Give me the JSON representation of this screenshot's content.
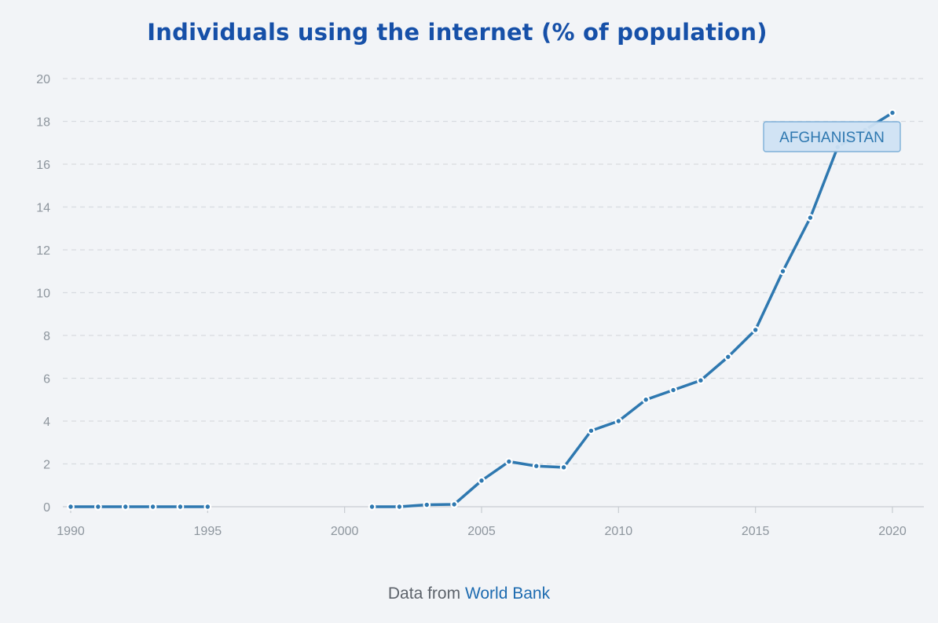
{
  "chart_data": {
    "type": "line",
    "title": "Individuals using the internet (% of population)",
    "xlabel": "",
    "ylabel": "",
    "xlim": [
      1990,
      2020
    ],
    "ylim": [
      0,
      20
    ],
    "x_ticks": [
      1990,
      1995,
      2000,
      2005,
      2010,
      2015,
      2020
    ],
    "y_ticks": [
      0,
      2,
      4,
      6,
      8,
      10,
      12,
      14,
      16,
      18,
      20
    ],
    "grid": true,
    "series": [
      {
        "name": "AFGHANISTAN",
        "color": "#2e78b0",
        "segments": [
          {
            "x": [
              1990,
              1991,
              1992,
              1993,
              1994,
              1995
            ],
            "values": [
              0,
              0,
              0,
              0,
              0,
              0
            ]
          },
          {
            "x": [
              2001,
              2002,
              2003,
              2004,
              2005,
              2006,
              2007,
              2008,
              2009,
              2010,
              2011,
              2012,
              2013,
              2014,
              2015,
              2016,
              2017,
              2018,
              2019,
              2020
            ],
            "values": [
              0.0,
              0.0,
              0.09,
              0.11,
              1.22,
              2.11,
              1.9,
              1.84,
              3.55,
              4.0,
              5.0,
              5.45,
              5.9,
              7.0,
              8.26,
              11.0,
              13.5,
              16.8,
              17.6,
              18.4
            ]
          }
        ]
      }
    ],
    "series_label": "AFGHANISTAN"
  },
  "source": {
    "prefix": "Data from",
    "link_text": "World Bank"
  },
  "colors": {
    "title": "#1650a8",
    "line": "#2e78b0",
    "grid": "#d8dbe0",
    "axis": "#c8ccd2",
    "tick_text": "#8d959d",
    "label_box_fill": "#cfe2f3",
    "label_box_stroke": "#7eb0d8",
    "label_text": "#2e78b0",
    "link": "#1d6bb0"
  }
}
